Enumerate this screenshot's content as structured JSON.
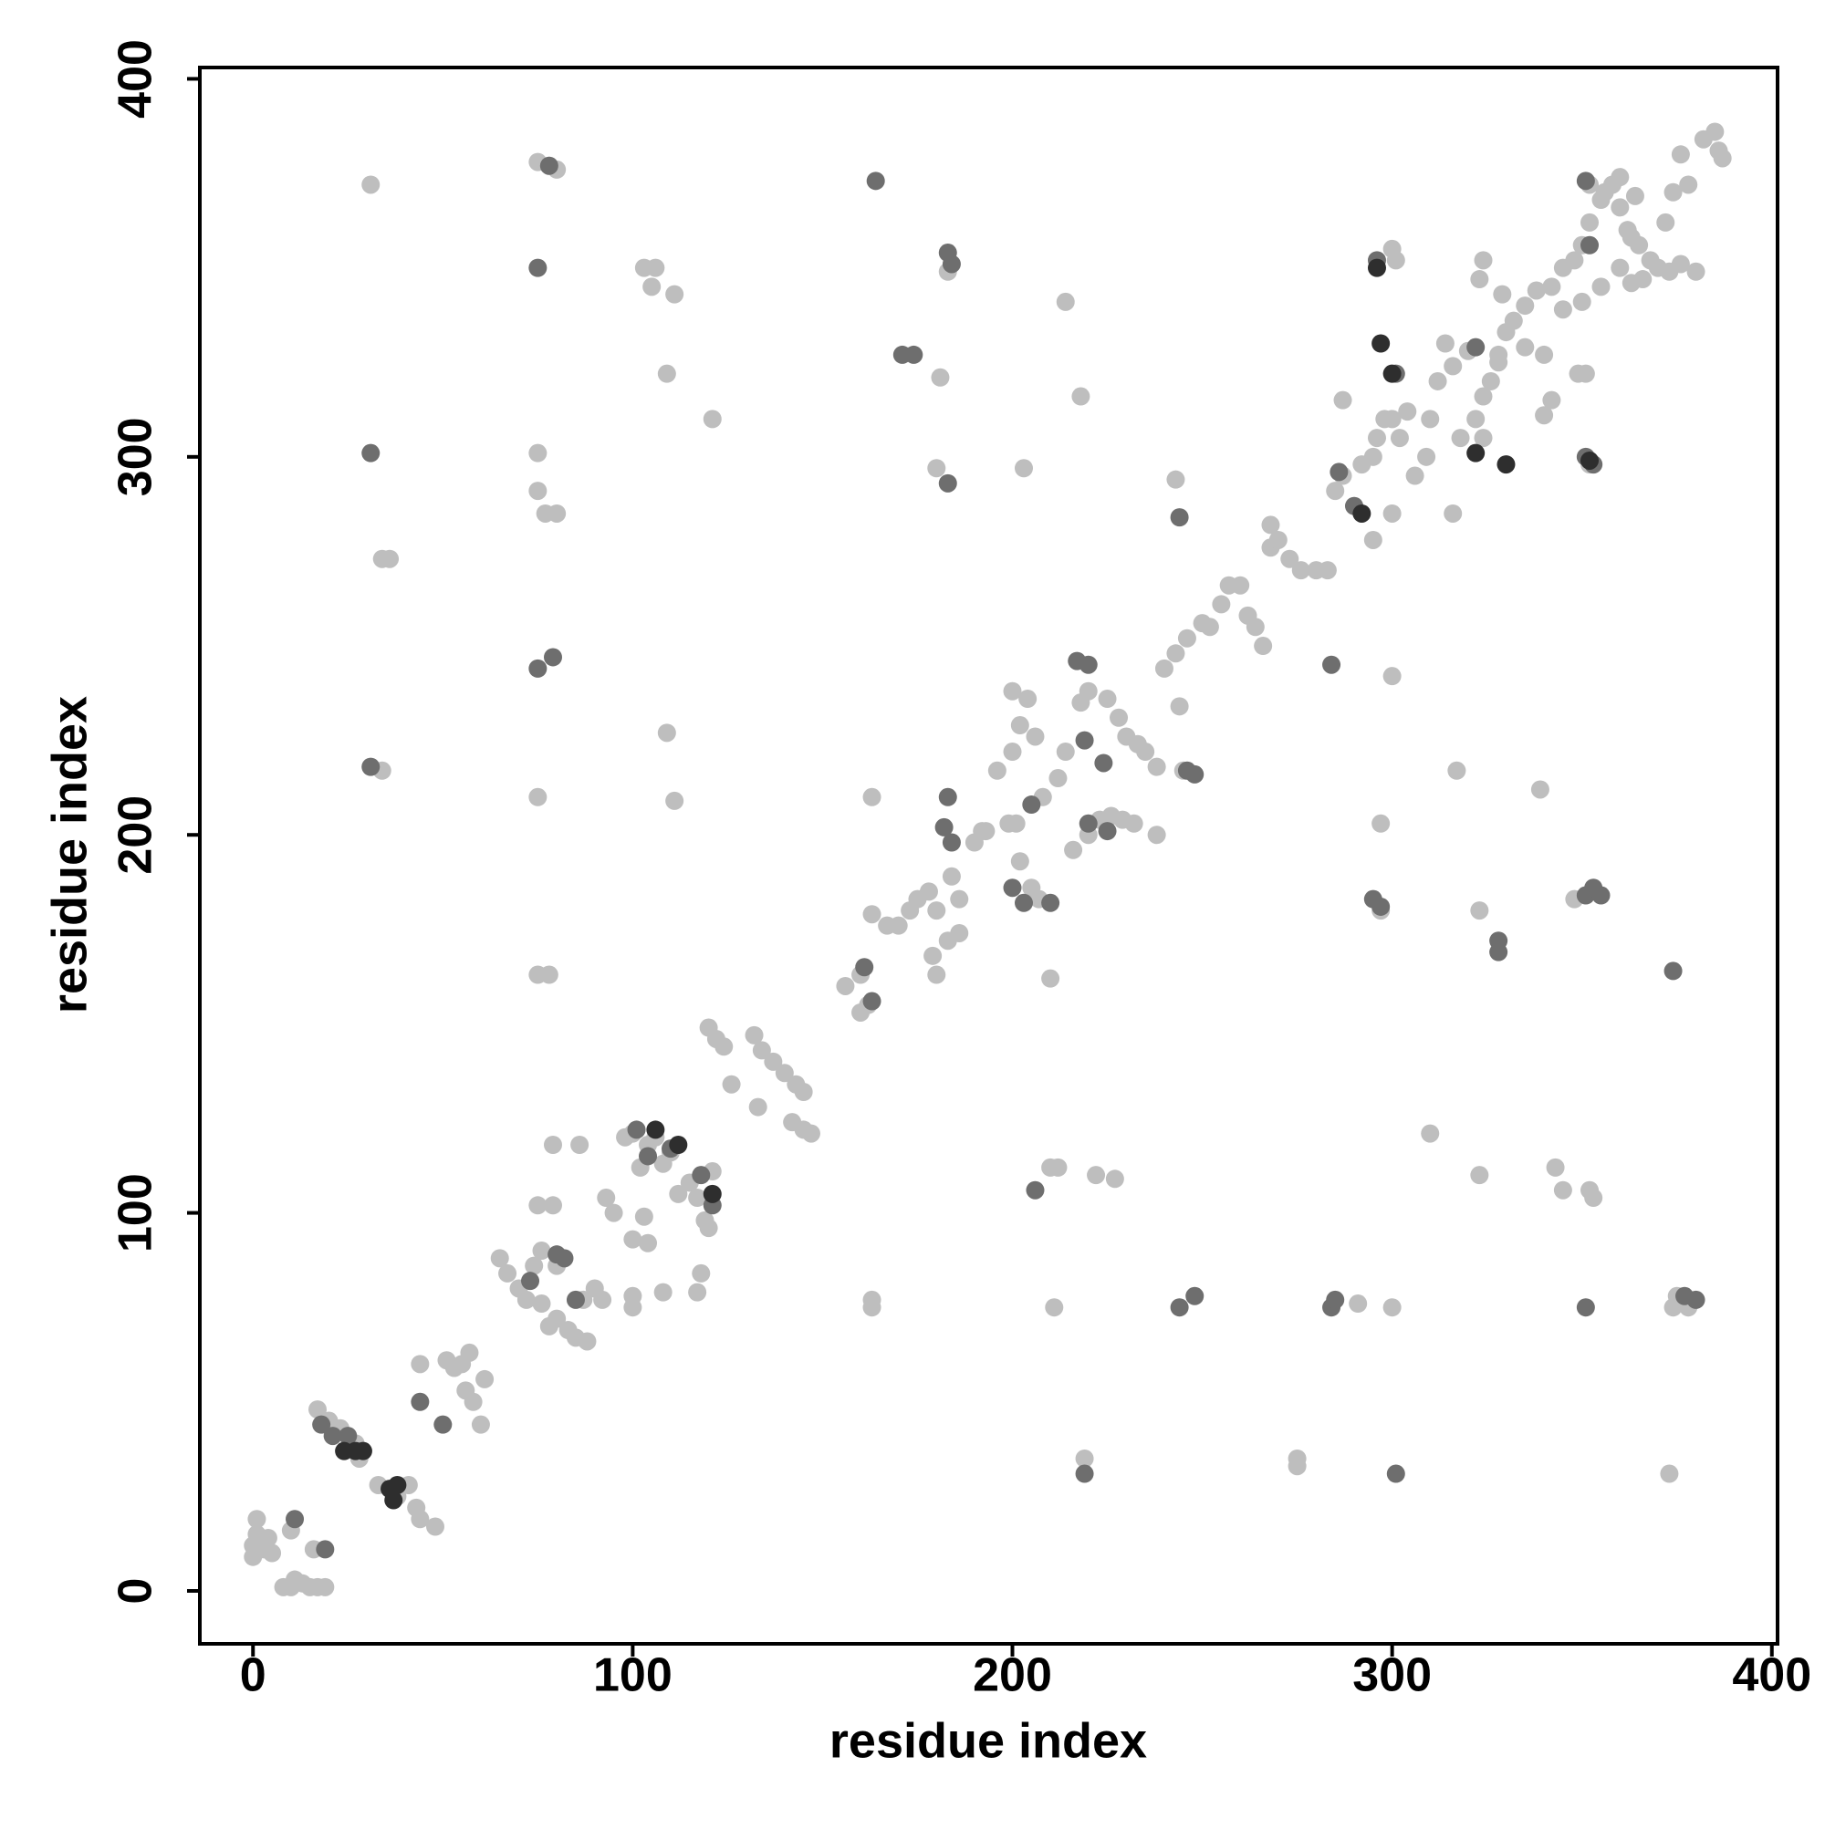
{
  "chart_data": {
    "type": "scatter",
    "xlabel": "residue index",
    "ylabel": "residue index",
    "xlim": [
      -14,
      401.5
    ],
    "ylim": [
      -14,
      403
    ],
    "xticks": [
      0,
      100,
      200,
      300,
      400
    ],
    "yticks": [
      0,
      100,
      200,
      300,
      400
    ],
    "grid": false,
    "series": [
      {
        "color": "#bebebe",
        "x": [
          0,
          0,
          1,
          1,
          3,
          4,
          5,
          8,
          10,
          11,
          13,
          15,
          17,
          19,
          10,
          16,
          17,
          20,
          23,
          27,
          28,
          33,
          38,
          41,
          43,
          44,
          48,
          44,
          51,
          55,
          53,
          57,
          56,
          58,
          61,
          60,
          65,
          67,
          70,
          72,
          74,
          76,
          78,
          80,
          83,
          85,
          88,
          90,
          86,
          79,
          75,
          79,
          76,
          80,
          87,
          92,
          93,
          95,
          98,
          100,
          102,
          104,
          106,
          108,
          110,
          100,
          103,
          104,
          100,
          100,
          108,
          112,
          115,
          117,
          119,
          120,
          121,
          117,
          118,
          120,
          122,
          124,
          126,
          132,
          134,
          137,
          133,
          140,
          143,
          145,
          142,
          145,
          147,
          156,
          160,
          162,
          160,
          163,
          167,
          170,
          173,
          175,
          178,
          179,
          180,
          184,
          183,
          186,
          190,
          193,
          196,
          200,
          202,
          204,
          206,
          200,
          208,
          212,
          214,
          216,
          220,
          223,
          226,
          229,
          232,
          238,
          218,
          220,
          225,
          228,
          230,
          233,
          235,
          238,
          240,
          243,
          246,
          250,
          252,
          255,
          257,
          260,
          262,
          264,
          266,
          268,
          268,
          270,
          273,
          276,
          280,
          283,
          285,
          287,
          290,
          292,
          295,
          296,
          298,
          300,
          302,
          304,
          306,
          309,
          310,
          312,
          314,
          316,
          318,
          320,
          322,
          324,
          326,
          328,
          330,
          332,
          335,
          338,
          342,
          345,
          348,
          350,
          352,
          355,
          358,
          360,
          362,
          365,
          368,
          370,
          372,
          374,
          376,
          378,
          382,
          385,
          386,
          352,
          356,
          360,
          364,
          345,
          350,
          355,
          360,
          363,
          366,
          340,
          342,
          328,
          323,
          324,
          329,
          335,
          324,
          316,
          300,
          295,
          275,
          275,
          219,
          373,
          300,
          291,
          163,
          163,
          211,
          210,
          212,
          227,
          222,
          310,
          323,
          343,
          345,
          352,
          353,
          339,
          317,
          297,
          297,
          323,
          348,
          210,
          163,
          109,
          111,
          121,
          109,
          111,
          105,
          103,
          106,
          214,
          218,
          203,
          180,
          181,
          183,
          75,
          78,
          80,
          31,
          75,
          75,
          77,
          80,
          34,
          36,
          34,
          75,
          75,
          78,
          243,
          244,
          300,
          301,
          245,
          202,
          207,
          205,
          201,
          186,
          180,
          192,
          199,
          287,
          300,
          374,
          378,
          375,
          373,
          376,
          380,
          340,
          352,
          351,
          349,
          363,
          387
        ],
        "values": [
          9,
          12,
          15,
          19,
          11,
          14,
          10,
          1,
          1,
          3,
          2,
          1,
          1,
          1,
          16,
          11,
          48,
          45,
          43,
          39,
          35,
          28,
          25,
          28,
          22,
          19,
          17,
          60,
          61,
          60,
          59,
          63,
          53,
          50,
          56,
          44,
          88,
          84,
          80,
          77,
          86,
          76,
          70,
          72,
          69,
          67,
          66,
          80,
          118,
          118,
          102,
          102,
          90,
          86,
          77,
          77,
          104,
          100,
          120,
          121,
          112,
          118,
          120,
          113,
          116,
          93,
          99,
          92,
          78,
          75,
          79,
          105,
          108,
          104,
          98,
          96,
          111,
          79,
          84,
          149,
          146,
          144,
          134,
          147,
          143,
          140,
          128,
          137,
          134,
          132,
          124,
          122,
          121,
          160,
          163,
          155,
          153,
          179,
          176,
          176,
          180,
          183,
          185,
          168,
          163,
          189,
          172,
          174,
          198,
          201,
          217,
          222,
          229,
          236,
          226,
          238,
          210,
          215,
          222,
          196,
          200,
          204,
          205,
          204,
          203,
          200,
          235,
          238,
          236,
          231,
          226,
          224,
          222,
          218,
          244,
          248,
          252,
          256,
          255,
          261,
          266,
          266,
          258,
          255,
          250,
          276,
          282,
          278,
          273,
          270,
          270,
          270,
          291,
          295,
          287,
          298,
          300,
          305,
          310,
          310,
          305,
          312,
          295,
          300,
          310,
          320,
          330,
          324,
          305,
          328,
          310,
          316,
          320,
          327,
          333,
          336,
          340,
          344,
          345,
          350,
          352,
          356,
          362,
          368,
          372,
          366,
          360,
          356,
          352,
          350,
          362,
          370,
          380,
          372,
          384,
          386,
          381,
          372,
          370,
          374,
          369,
          339,
          341,
          345,
          350,
          346,
          347,
          311,
          315,
          325,
          347,
          352,
          343,
          329,
          305,
          285,
          285,
          278,
          35,
          33,
          35,
          31,
          75,
          76,
          77,
          75,
          75,
          112,
          112,
          109,
          110,
          121,
          110,
          112,
          106,
          106,
          104,
          212,
          217,
          203,
          180,
          180,
          183,
          162,
          210,
          227,
          209,
          310,
          322,
          343,
          345,
          350,
          350,
          341,
          316,
          297,
          297,
          321,
          349,
          378,
          377,
          376,
          372,
          301,
          291,
          285,
          285,
          273,
          273,
          217,
          210,
          163,
          163,
          294,
          234,
          355,
          352,
          217,
          193,
          183,
          186,
          203,
          183,
          180,
          201,
          203,
          315,
          242,
          75,
          75,
          78,
          349,
          351,
          349,
          327,
          298,
          322,
          322,
          358,
          379
        ]
      },
      {
        "color": "#6e6e6e",
        "x": [
          11,
          19,
          18,
          21,
          25,
          44,
          50,
          80,
          82,
          85,
          73,
          101,
          104,
          110,
          118,
          121,
          163,
          161,
          182,
          183,
          184,
          200,
          203,
          205,
          210,
          206,
          219,
          224,
          217,
          220,
          244,
          246,
          248,
          244,
          248,
          284,
          285,
          219,
          301,
          284,
          297,
          295,
          328,
          328,
          351,
          353,
          355,
          374,
          351,
          377,
          380,
          31,
          75,
          79,
          75,
          78,
          31,
          164,
          171,
          174,
          183,
          184,
          183,
          296,
          352,
          351,
          351,
          353,
          322,
          301,
          286,
          290,
          220,
          225
        ],
        "values": [
          19,
          11,
          44,
          41,
          41,
          50,
          44,
          89,
          88,
          77,
          82,
          122,
          115,
          117,
          110,
          102,
          156,
          165,
          202,
          210,
          198,
          186,
          182,
          208,
          182,
          106,
          225,
          219,
          246,
          245,
          284,
          217,
          216,
          75,
          78,
          75,
          77,
          31,
          31,
          245,
          181,
          183,
          172,
          169,
          184,
          186,
          184,
          164,
          75,
          78,
          77,
          218,
          244,
          247,
          350,
          377,
          301,
          373,
          327,
          327,
          354,
          351,
          293,
          352,
          356,
          373,
          300,
          298,
          329,
          322,
          296,
          287,
          203,
          201
        ]
      },
      {
        "color": "#2e2e2e",
        "x": [
          24,
          27,
          29,
          36,
          37,
          38,
          297,
          300,
          296,
          322,
          330,
          106,
          112,
          121,
          292,
          352
        ],
        "values": [
          37,
          37,
          37,
          27,
          24,
          28,
          330,
          322,
          350,
          301,
          298,
          122,
          118,
          105,
          285,
          299
        ]
      }
    ]
  }
}
